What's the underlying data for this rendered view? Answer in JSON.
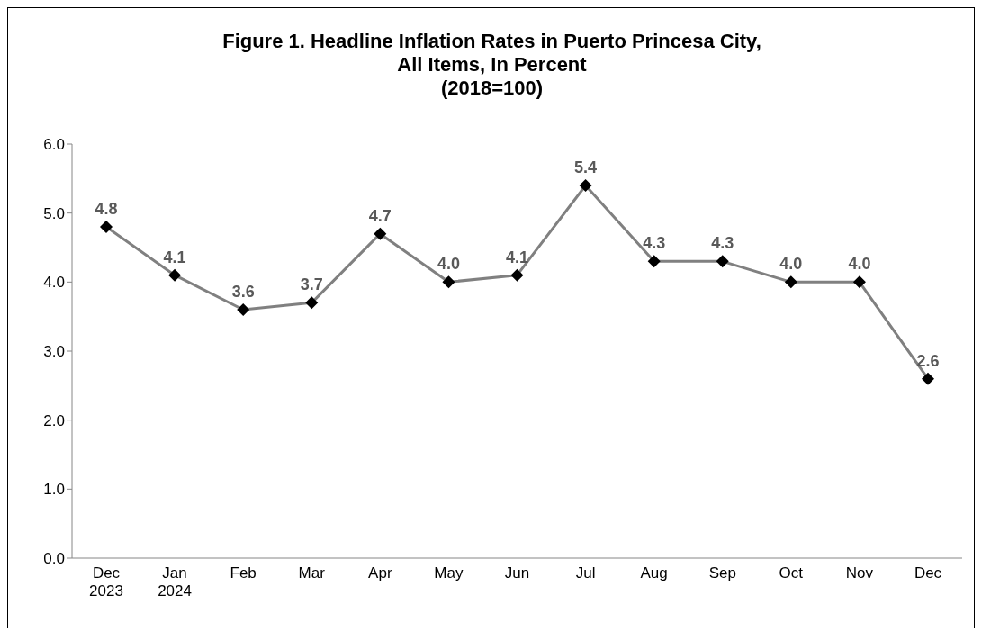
{
  "chart_data": {
    "type": "line",
    "title": "Figure 1. Headline Inflation Rates in Puerto Princesa City,\nAll Items, In Percent\n(2018=100)",
    "categories": [
      "Dec\n2023",
      "Jan\n2024",
      "Feb",
      "Mar",
      "Apr",
      "May",
      "Jun",
      "Jul",
      "Aug",
      "Sep",
      "Oct",
      "Nov",
      "Dec"
    ],
    "series": [
      {
        "color": "#808080",
        "values": [
          4.8,
          4.1,
          3.6,
          3.7,
          4.7,
          4.0,
          4.1,
          5.4,
          4.3,
          4.3,
          4.0,
          4.0,
          2.6
        ],
        "value_labels": [
          "4.8",
          "4.1",
          "3.6",
          "3.7",
          "4.7",
          "4.0",
          "4.1",
          "5.4",
          "4.3",
          "4.3",
          "4.0",
          "4.0",
          "2.6"
        ]
      }
    ],
    "ylim": [
      0,
      6
    ],
    "yticks": [
      {
        "value": 0,
        "label": "0.0"
      },
      {
        "value": 1,
        "label": "1.0"
      },
      {
        "value": 2,
        "label": "2.0"
      },
      {
        "value": 3,
        "label": "3.0"
      },
      {
        "value": 4,
        "label": "4.0"
      },
      {
        "value": 5,
        "label": "5.0"
      },
      {
        "value": 6,
        "label": "6.0"
      }
    ],
    "grid": false,
    "legend": false,
    "marker": "diamond",
    "line_style": "solid"
  }
}
